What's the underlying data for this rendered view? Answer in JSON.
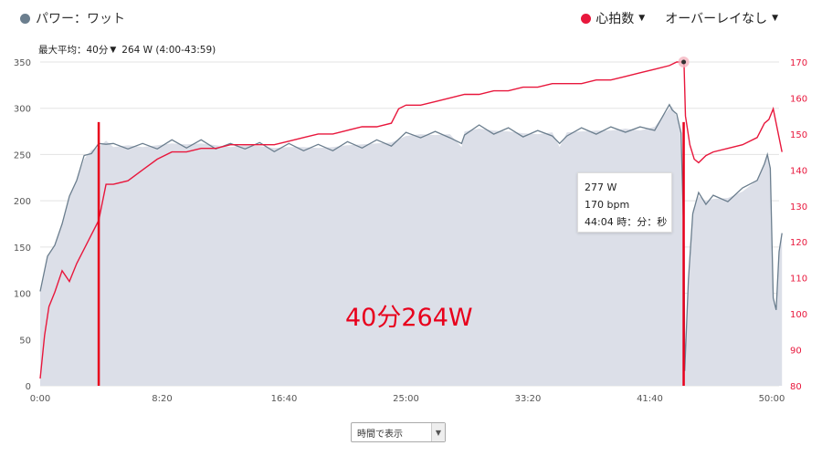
{
  "header": {
    "power_label": "パワー：ワット",
    "power_color": "#6b7e8e",
    "hr_label": "心拍数",
    "hr_color": "#e8173c",
    "overlay_label": "オーバーレイなし"
  },
  "subheader": {
    "label": "最大平均：40分",
    "value": "264 W (4:00-43:59)"
  },
  "tooltip": {
    "power": "277 W",
    "hr": "170 bpm",
    "time": "44:04 時：分：秒"
  },
  "annotation": "40分264W",
  "time_select": {
    "selected": "時間で表示"
  },
  "chart_data": {
    "type": "area",
    "x_unit": "minutes",
    "x_ticks": [
      "0:00",
      "8:20",
      "16:40",
      "25:00",
      "33:20",
      "41:40",
      "50:00"
    ],
    "y_left": {
      "lim": [
        0,
        350
      ],
      "ticks": [
        0,
        50,
        100,
        150,
        200,
        250,
        300,
        350
      ]
    },
    "y_right": {
      "lim": [
        80,
        170
      ],
      "ticks": [
        80,
        90,
        100,
        110,
        120,
        130,
        140,
        150,
        160,
        170
      ]
    },
    "series": [
      {
        "name": "パワー：ワット",
        "axis": "left",
        "color": "#6b7e8e",
        "fill": "#dcdfe8",
        "x": [
          0,
          0.5,
          1,
          1.5,
          2,
          2.5,
          3,
          3.5,
          4,
          4.5,
          5,
          6,
          7,
          8,
          9,
          10,
          11,
          12,
          13,
          14,
          15,
          16,
          17,
          18,
          19,
          20,
          21,
          22,
          23,
          24,
          25,
          26,
          27,
          28,
          28.8,
          29,
          30,
          31,
          32,
          33,
          34,
          35,
          35.5,
          36,
          37,
          38,
          39,
          40,
          41,
          42,
          43,
          43.2,
          43.5,
          43.8,
          44.0,
          44.05,
          44.3,
          44.6,
          45,
          45.5,
          46,
          47,
          48,
          49,
          49.5,
          49.7,
          49.9,
          50.1,
          50.3,
          50.5,
          50.7
        ],
        "y": [
          102,
          140,
          152,
          175,
          205,
          222,
          245,
          255,
          258,
          265,
          258,
          260,
          258,
          260,
          262,
          261,
          262,
          260,
          258,
          260,
          259,
          257,
          258,
          258,
          257,
          258,
          260,
          261,
          262,
          263,
          270,
          272,
          271,
          272,
          258,
          275,
          278,
          276,
          275,
          273,
          272,
          274,
          258,
          274,
          275,
          276,
          276,
          278,
          276,
          280,
          300,
          302,
          290,
          277,
          150,
          20,
          110,
          190,
          205,
          200,
          202,
          203,
          210,
          222,
          240,
          250,
          235,
          95,
          82,
          145,
          165
        ]
      },
      {
        "name": "心拍数",
        "axis": "right",
        "color": "#e8173c",
        "x": [
          0,
          0.3,
          0.6,
          1,
          1.5,
          2,
          2.5,
          3,
          3.5,
          4,
          4.5,
          5,
          6,
          7,
          8,
          9,
          10,
          11,
          12,
          13,
          14,
          15,
          16,
          17,
          18,
          19,
          20,
          21,
          22,
          23,
          24,
          24.5,
          25,
          26,
          27,
          28,
          29,
          30,
          31,
          32,
          33,
          34,
          35,
          36,
          37,
          38,
          39,
          40,
          41,
          42,
          43,
          43.5,
          44.0,
          44.1,
          44.4,
          44.7,
          45,
          45.5,
          46,
          47,
          48,
          49,
          49.5,
          49.8,
          50.1,
          50.3,
          50.7
        ],
        "y": [
          82,
          94,
          102,
          106,
          112,
          109,
          114,
          118,
          122,
          126,
          136,
          136,
          137,
          140,
          143,
          145,
          145,
          146,
          146,
          147,
          147,
          147,
          147,
          148,
          149,
          150,
          150,
          151,
          152,
          152,
          153,
          157,
          158,
          158,
          159,
          160,
          161,
          161,
          162,
          162,
          163,
          163,
          164,
          164,
          164,
          165,
          165,
          166,
          167,
          168,
          169,
          170,
          170,
          155,
          147,
          143,
          142,
          144,
          145,
          146,
          147,
          149,
          153,
          154,
          157,
          153,
          145
        ]
      }
    ],
    "markers": [
      {
        "x": 4.0,
        "color": "#e8001c"
      },
      {
        "x": 43.98,
        "color": "#e8001c"
      }
    ],
    "grid": true
  }
}
